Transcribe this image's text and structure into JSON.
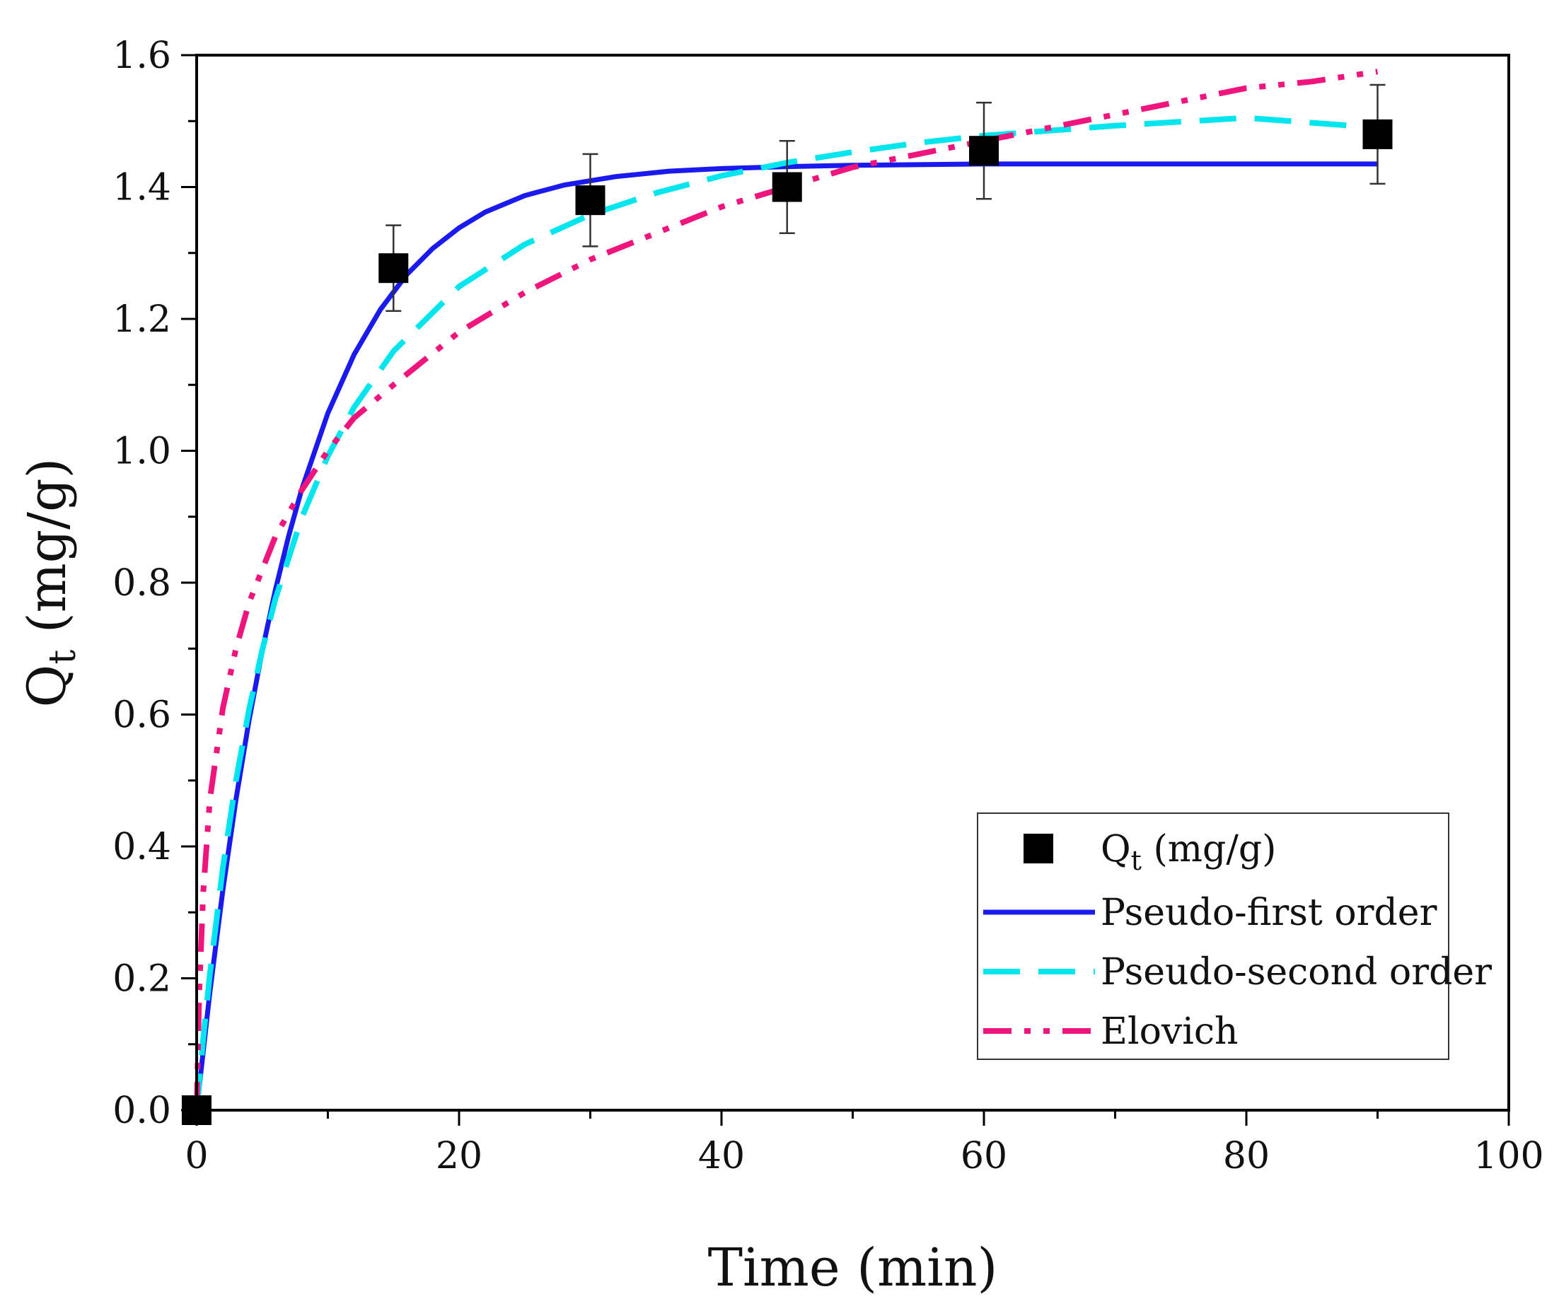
{
  "chart_data": {
    "type": "scatter",
    "xlabel": "Time (min)",
    "ylabel": {
      "main": "Q",
      "sub": "t",
      "rest": " (mg/g)"
    },
    "xlim": [
      0,
      100
    ],
    "ylim": [
      0,
      1.6
    ],
    "x_ticks": [
      0,
      20,
      40,
      60,
      80,
      100
    ],
    "x_tick_labels": [
      "0",
      "20",
      "40",
      "60",
      "80",
      "100"
    ],
    "y_ticks": [
      0,
      0.2,
      0.4,
      0.6,
      0.8,
      1.0,
      1.2,
      1.4,
      1.6
    ],
    "y_tick_labels": [
      "0.0",
      "0.2",
      "0.4",
      "0.6",
      "0.8",
      "1.0",
      "1.2",
      "1.4",
      "1.6"
    ],
    "legend_position": "bottom-right",
    "series": [
      {
        "name": "Qt (mg/g)",
        "legend": {
          "main": "Q",
          "sub": "t",
          "rest": " (mg/g)"
        },
        "kind": "points",
        "color": "#000000",
        "x": [
          0,
          15,
          30,
          45,
          60,
          90
        ],
        "y": [
          0.0,
          1.277,
          1.38,
          1.4,
          1.455,
          1.48
        ],
        "error": [
          0,
          0.065,
          0.07,
          0.07,
          0.073,
          0.075
        ]
      },
      {
        "name": "Pseudo-first order",
        "legend": {
          "main": "Pseudo-first order",
          "sub": "",
          "rest": ""
        },
        "kind": "line",
        "style": "solid",
        "color": "#1a1aef",
        "x": [
          0,
          1,
          2,
          3,
          4,
          5,
          6,
          7,
          8,
          10,
          12,
          14,
          16,
          18,
          20,
          22,
          25,
          28,
          32,
          36,
          40,
          45,
          50,
          60,
          70,
          80,
          90
        ],
        "y": [
          0.0,
          0.178,
          0.334,
          0.471,
          0.592,
          0.697,
          0.789,
          0.87,
          0.941,
          1.057,
          1.146,
          1.214,
          1.267,
          1.307,
          1.338,
          1.362,
          1.387,
          1.403,
          1.416,
          1.424,
          1.428,
          1.431,
          1.433,
          1.435,
          1.435,
          1.435,
          1.435
        ]
      },
      {
        "name": "Pseudo-second order",
        "legend": {
          "main": "Pseudo-second order",
          "sub": "",
          "rest": ""
        },
        "kind": "line",
        "style": "dashed",
        "color": "#00e5ee",
        "x": [
          0,
          0.5,
          1,
          2,
          3,
          4,
          5,
          6,
          8,
          10,
          12,
          15,
          20,
          25,
          30,
          35,
          40,
          45,
          50,
          55,
          60,
          70,
          80,
          90
        ],
        "y": [
          0.0,
          0.108,
          0.205,
          0.368,
          0.5,
          0.608,
          0.698,
          0.775,
          0.898,
          0.992,
          1.066,
          1.151,
          1.249,
          1.313,
          1.358,
          1.391,
          1.417,
          1.437,
          1.453,
          1.467,
          1.478,
          1.493,
          1.505,
          1.49
        ]
      },
      {
        "name": "Elovich",
        "legend": {
          "main": "Elovich",
          "sub": "",
          "rest": ""
        },
        "kind": "line",
        "style": "dashdotdot",
        "color": "#f0147d",
        "x": [
          0,
          0.2,
          0.5,
          1,
          2,
          3,
          4,
          5,
          6,
          8,
          10,
          12,
          15,
          20,
          25,
          30,
          35,
          40,
          45,
          50,
          55,
          60,
          65,
          70,
          75,
          80,
          85,
          90
        ],
        "y": [
          0.0,
          0.18,
          0.33,
          0.47,
          0.61,
          0.7,
          0.77,
          0.82,
          0.87,
          0.94,
          1.0,
          1.05,
          1.1,
          1.18,
          1.24,
          1.29,
          1.33,
          1.37,
          1.4,
          1.43,
          1.45,
          1.47,
          1.49,
          1.51,
          1.53,
          1.55,
          1.56,
          1.575
        ]
      }
    ]
  }
}
